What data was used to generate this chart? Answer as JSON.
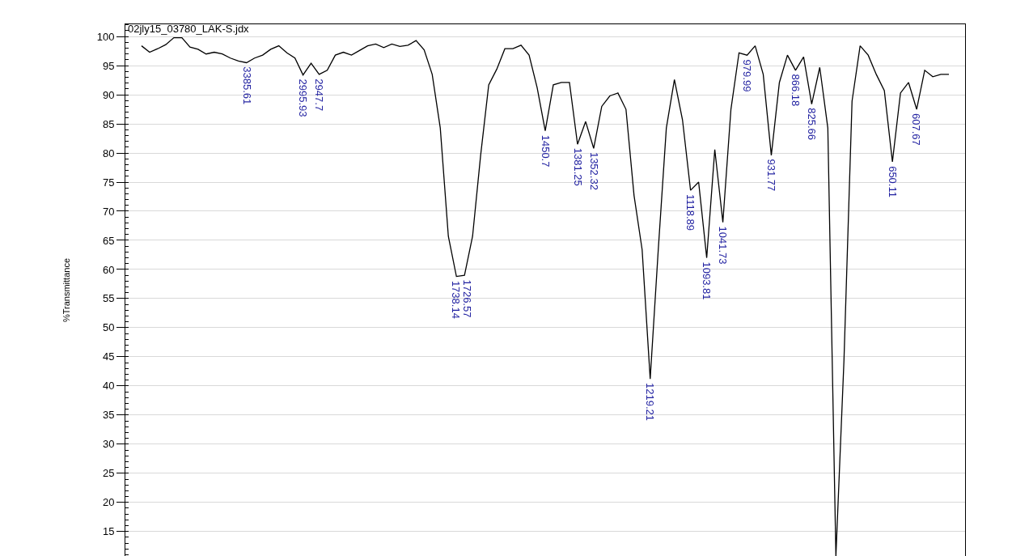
{
  "chart_data": {
    "type": "line",
    "title": "02jly15_03780_LAK-S.jdx",
    "ylabel": "%Transmittance",
    "categories": [
      null,
      null,
      null,
      null,
      null,
      null,
      null,
      null,
      null,
      null,
      null,
      null,
      null,
      "3385.61",
      null,
      null,
      null,
      null,
      null,
      null,
      "2995.93",
      null,
      "2947.7",
      null,
      null,
      null,
      null,
      null,
      null,
      null,
      null,
      null,
      null,
      null,
      null,
      null,
      null,
      null,
      null,
      "1738.14",
      "1726.57",
      null,
      null,
      null,
      null,
      null,
      null,
      null,
      null,
      null,
      "1450.7",
      null,
      null,
      null,
      "1381.25",
      null,
      "1352.32",
      null,
      null,
      null,
      null,
      null,
      null,
      "1219.21",
      null,
      null,
      null,
      null,
      "1118.89",
      null,
      "1093.81",
      null,
      "1041.73",
      null,
      null,
      "979.99",
      null,
      null,
      "931.77",
      null,
      null,
      "866.18",
      null,
      "825.66",
      null,
      null,
      null,
      null,
      null,
      null,
      null,
      null,
      null,
      "650.11",
      null,
      null,
      "607.67",
      null,
      null,
      null,
      null
    ],
    "series": [
      {
        "color": "#000000",
        "values": [
          98.4,
          97.3,
          97.9,
          98.6,
          99.8,
          99.8,
          98.2,
          97.8,
          97.0,
          97.3,
          97.0,
          96.3,
          95.8,
          95.5,
          96.3,
          96.8,
          97.8,
          98.4,
          97.2,
          96.3,
          93.4,
          95.4,
          93.5,
          94.2,
          96.8,
          97.3,
          96.8,
          97.6,
          98.4,
          98.7,
          98.1,
          98.7,
          98.3,
          98.5,
          99.3,
          97.7,
          93.5,
          84.3,
          65.7,
          58.8,
          59.0,
          65.7,
          79.6,
          91.7,
          94.4,
          97.9,
          97.9,
          98.5,
          96.8,
          91.2,
          83.8,
          91.7,
          92.1,
          92.1,
          81.5,
          85.4,
          80.8,
          88.0,
          89.8,
          90.3,
          87.5,
          72.7,
          63.4,
          41.2,
          63.4,
          84.3,
          92.6,
          85.7,
          73.6,
          75.0,
          62.0,
          80.6,
          68.1,
          87.5,
          97.2,
          96.8,
          98.4,
          93.5,
          79.6,
          92.1,
          96.8,
          94.2,
          96.5,
          88.4,
          94.7,
          84.3,
          10.8,
          44.4,
          88.9,
          98.4,
          96.8,
          93.5,
          90.7,
          78.5,
          90.3,
          92.1,
          87.5,
          94.2,
          93.1,
          93.5,
          93.5
        ]
      }
    ],
    "ylim": [
      10.8,
      102.1
    ],
    "yticks": [
      15,
      20,
      25,
      30,
      35,
      40,
      45,
      50,
      55,
      60,
      65,
      70,
      75,
      80,
      85,
      90,
      95,
      100
    ],
    "grid": "y",
    "tick_labels": "y",
    "marker": "none",
    "line_style": "solid"
  }
}
